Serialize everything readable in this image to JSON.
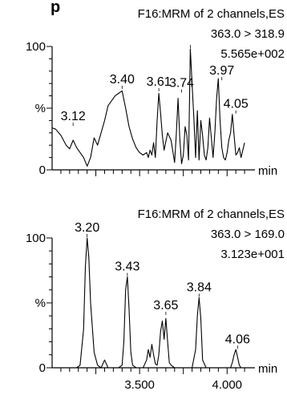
{
  "header_fragment": "p",
  "chart_data": [
    {
      "type": "line",
      "header": [
        "F16:MRM of 2 channels,ES",
        "363.0 > 318.9",
        "5.565e+002"
      ],
      "xlim": [
        3.0,
        4.15
      ],
      "ylim": [
        0,
        100
      ],
      "ytick_labels": [
        "100",
        "%",
        "0"
      ],
      "xunit": "min",
      "xtick_labels": [],
      "peak_labels": [
        {
          "x": 3.12,
          "y": 35,
          "label": "3.12"
        },
        {
          "x": 3.4,
          "y": 65,
          "label": "3.40"
        },
        {
          "x": 3.61,
          "y": 63,
          "label": "3.61"
        },
        {
          "x": 3.74,
          "y": 62,
          "label": "3.74"
        },
        {
          "x": 3.79,
          "y": 98,
          "label": ""
        },
        {
          "x": 3.97,
          "y": 72,
          "label": "3.97"
        },
        {
          "x": 4.05,
          "y": 45,
          "label": "4.05"
        }
      ],
      "x": [
        3.0,
        3.02,
        3.05,
        3.08,
        3.1,
        3.12,
        3.14,
        3.16,
        3.18,
        3.2,
        3.22,
        3.24,
        3.26,
        3.28,
        3.3,
        3.32,
        3.34,
        3.36,
        3.38,
        3.4,
        3.42,
        3.44,
        3.46,
        3.48,
        3.5,
        3.52,
        3.54,
        3.55,
        3.56,
        3.57,
        3.58,
        3.59,
        3.6,
        3.61,
        3.62,
        3.63,
        3.64,
        3.66,
        3.68,
        3.7,
        3.71,
        3.72,
        3.73,
        3.74,
        3.75,
        3.76,
        3.77,
        3.78,
        3.79,
        3.8,
        3.81,
        3.82,
        3.83,
        3.84,
        3.85,
        3.86,
        3.87,
        3.88,
        3.89,
        3.9,
        3.92,
        3.93,
        3.94,
        3.95,
        3.96,
        3.97,
        3.98,
        3.99,
        4.0,
        4.01,
        4.02,
        4.03,
        4.04,
        4.05,
        4.06,
        4.07,
        4.08,
        4.1
      ],
      "y": [
        34,
        33,
        28,
        20,
        17,
        24,
        18,
        14,
        10,
        3,
        10,
        26,
        20,
        30,
        40,
        52,
        56,
        60,
        62,
        64,
        50,
        35,
        25,
        18,
        14,
        12,
        14,
        10,
        16,
        12,
        22,
        10,
        40,
        62,
        46,
        28,
        16,
        30,
        24,
        6,
        30,
        58,
        25,
        5,
        12,
        35,
        28,
        8,
        98,
        70,
        42,
        10,
        48,
        8,
        40,
        28,
        12,
        8,
        18,
        42,
        10,
        30,
        58,
        74,
        40,
        18,
        10,
        8,
        14,
        24,
        30,
        45,
        28,
        12,
        14,
        18,
        10,
        22
      ]
    },
    {
      "type": "line",
      "header": [
        "F16:MRM of 2 channels,ES",
        "363.0 > 169.0",
        "3.123e+001"
      ],
      "xlim": [
        3.0,
        4.15
      ],
      "ylim": [
        0,
        100
      ],
      "ytick_labels": [
        "100",
        "%",
        "0"
      ],
      "xunit": "min",
      "xtick_labels": [
        {
          "x": 3.5,
          "label": "3.500"
        },
        {
          "x": 4.0,
          "label": "4.000"
        }
      ],
      "peak_labels": [
        {
          "x": 3.2,
          "y": 100,
          "label": "3.20"
        },
        {
          "x": 3.43,
          "y": 70,
          "label": "3.43"
        },
        {
          "x": 3.65,
          "y": 40,
          "label": "3.65"
        },
        {
          "x": 3.84,
          "y": 54,
          "label": "3.84"
        },
        {
          "x": 4.06,
          "y": 14,
          "label": "4.06"
        }
      ],
      "x": [
        3.0,
        3.05,
        3.1,
        3.14,
        3.16,
        3.18,
        3.19,
        3.2,
        3.21,
        3.22,
        3.24,
        3.26,
        3.28,
        3.3,
        3.32,
        3.34,
        3.36,
        3.38,
        3.4,
        3.41,
        3.42,
        3.43,
        3.44,
        3.45,
        3.46,
        3.48,
        3.5,
        3.52,
        3.54,
        3.55,
        3.56,
        3.57,
        3.58,
        3.59,
        3.6,
        3.61,
        3.62,
        3.63,
        3.64,
        3.65,
        3.66,
        3.67,
        3.68,
        3.7,
        3.72,
        3.74,
        3.76,
        3.78,
        3.8,
        3.82,
        3.83,
        3.84,
        3.85,
        3.86,
        3.88,
        3.9,
        3.92,
        3.94,
        3.96,
        3.98,
        4.0,
        4.02,
        4.03,
        4.04,
        4.05,
        4.06,
        4.07,
        4.08,
        4.1
      ],
      "y": [
        0,
        0,
        0,
        0,
        2,
        30,
        78,
        100,
        85,
        50,
        12,
        2,
        0,
        6,
        0,
        0,
        0,
        0,
        2,
        20,
        60,
        70,
        45,
        12,
        2,
        0,
        0,
        0,
        6,
        14,
        8,
        18,
        10,
        3,
        2,
        10,
        28,
        36,
        22,
        38,
        20,
        4,
        2,
        0,
        0,
        0,
        0,
        0,
        0,
        14,
        40,
        54,
        38,
        6,
        0,
        0,
        0,
        0,
        0,
        0,
        0,
        0,
        4,
        10,
        14,
        8,
        2,
        0,
        0
      ]
    }
  ]
}
